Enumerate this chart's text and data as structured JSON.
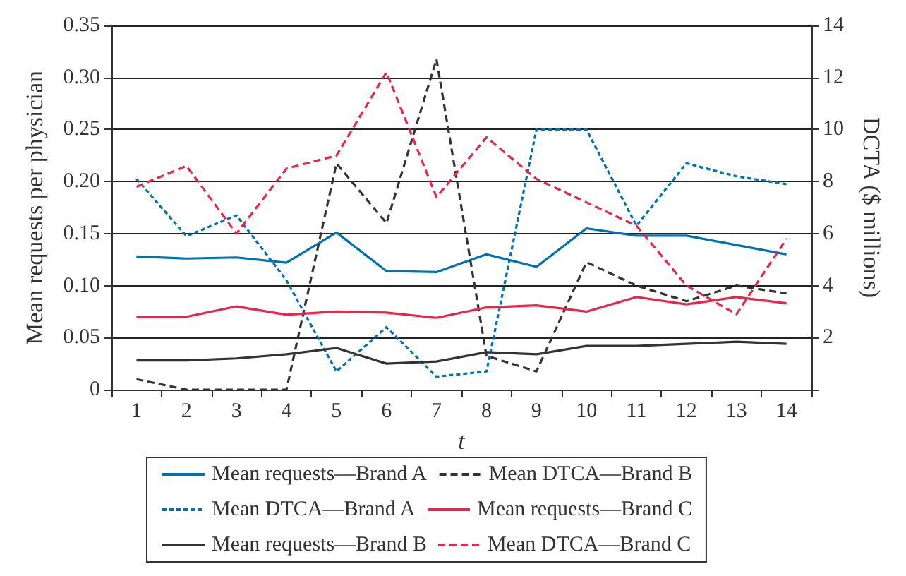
{
  "chart_data": {
    "type": "line",
    "xlabel": "t",
    "ylabel": "Mean requests per physician",
    "y2label": "DCTA ($ millions)",
    "categories": [
      "1",
      "2",
      "3",
      "4",
      "5",
      "6",
      "7",
      "8",
      "9",
      "10",
      "11",
      "12",
      "13",
      "14"
    ],
    "ylim": [
      0,
      0.35
    ],
    "yticks": [
      0,
      0.05,
      {
        "value": 0.1,
        "label": "0.10"
      },
      0.15,
      {
        "value": 0.2,
        "label": "0.20"
      },
      0.25,
      {
        "value": 0.3,
        "label": "0.30"
      },
      0.35
    ],
    "y2lim": [
      0,
      14
    ],
    "y2ticks": [
      {
        "value": 0,
        "label": null
      },
      2,
      4,
      6,
      8,
      10,
      12,
      14
    ],
    "grid": "y",
    "legend": "bottom",
    "marker": "none",
    "series": [
      {
        "name": "Mean requests—Brand A",
        "color": "#0072b0",
        "line_style": "solid",
        "values": [
          0.128,
          0.126,
          0.127,
          0.122,
          0.151,
          0.114,
          0.113,
          0.13,
          0.118,
          0.155,
          0.148,
          0.148,
          0.139,
          0.13
        ]
      },
      {
        "name": "Mean DTCA—Brand B",
        "color": "#333333",
        "line_style": "dashed",
        "axis": "y2",
        "values": [
          0.4,
          0,
          0,
          0,
          8.7,
          6.4,
          12.7,
          1.3,
          0.7,
          4.9,
          4.0,
          3.4,
          4.0,
          3.7
        ]
      },
      {
        "name": "Mean DTCA—Brand A",
        "color": "#0072b0",
        "line_style": "dotted",
        "axis": "y2",
        "values": [
          8.1,
          5.9,
          6.7,
          4.2,
          0.7,
          2.4,
          0.5,
          0.7,
          10.0,
          10.0,
          6.3,
          8.7,
          8.2,
          7.9
        ]
      },
      {
        "name": "Mean requests—Brand C",
        "color": "#e8254a",
        "line_style": "solid",
        "values": [
          0.07,
          0.07,
          0.08,
          0.072,
          0.075,
          0.074,
          0.069,
          0.079,
          0.081,
          0.075,
          0.089,
          0.082,
          0.089,
          0.083
        ]
      },
      {
        "name": "Mean requests—Brand B",
        "color": "#333333",
        "line_style": "solid",
        "values": [
          0.028,
          0.028,
          0.03,
          0.034,
          0.04,
          0.025,
          0.027,
          0.036,
          0.034,
          0.042,
          0.042,
          0.044,
          0.046,
          0.044
        ]
      },
      {
        "name": "Mean DTCA—Brand C",
        "color": "#e8254a",
        "line_style": "dashed",
        "axis": "y2",
        "values": [
          7.8,
          8.6,
          6.0,
          8.5,
          9.0,
          12.2,
          7.4,
          9.7,
          8.1,
          7.2,
          6.3,
          4.0,
          2.9,
          5.8
        ]
      }
    ]
  }
}
